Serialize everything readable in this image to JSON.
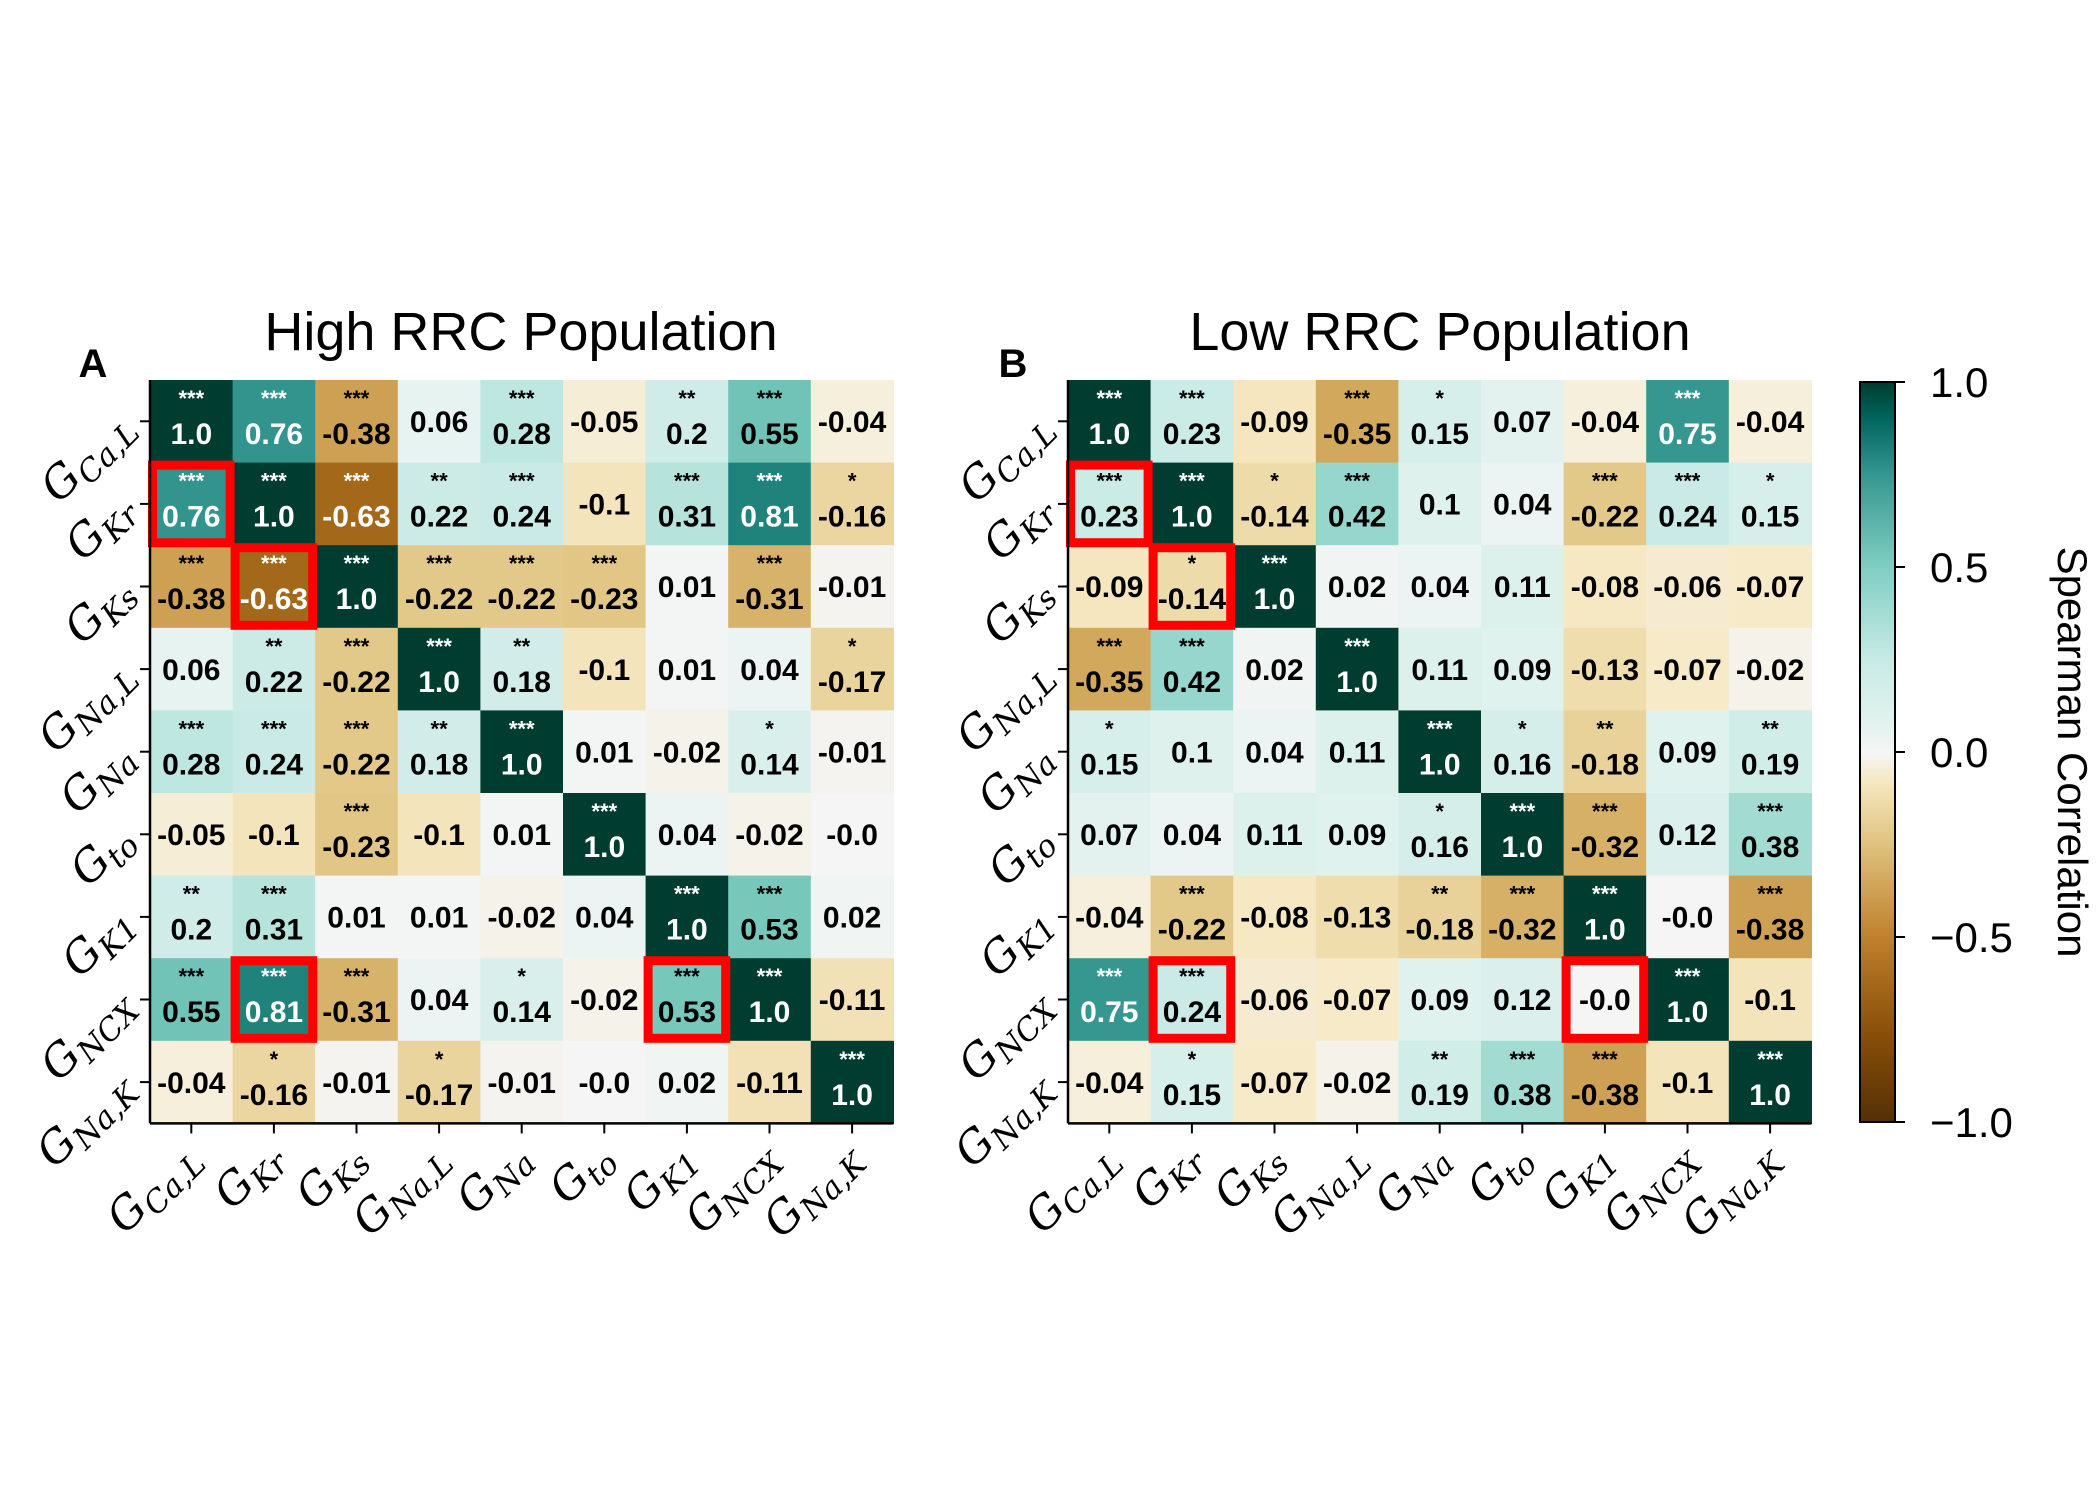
{
  "chart_data": [
    {
      "type": "heatmap",
      "panel_letter": "A",
      "title": "High RRC Population",
      "labels": [
        {
          "main": "G",
          "sub": "Ca,L"
        },
        {
          "main": "G",
          "sub": "Kr"
        },
        {
          "main": "G",
          "sub": "Ks"
        },
        {
          "main": "G",
          "sub": "Na,L"
        },
        {
          "main": "G",
          "sub": "Na"
        },
        {
          "main": "G",
          "sub": "to"
        },
        {
          "main": "G",
          "sub": "K1"
        },
        {
          "main": "G",
          "sub": "NCX"
        },
        {
          "main": "G",
          "sub": "Na,K"
        }
      ],
      "values": [
        [
          "1.0",
          "0.76",
          "-0.38",
          "0.06",
          "0.28",
          "-0.05",
          "0.2",
          "0.55",
          "-0.04"
        ],
        [
          "0.76",
          "1.0",
          "-0.63",
          "0.22",
          "0.24",
          "-0.1",
          "0.31",
          "0.81",
          "-0.16"
        ],
        [
          "-0.38",
          "-0.63",
          "1.0",
          "-0.22",
          "-0.22",
          "-0.23",
          "0.01",
          "-0.31",
          "-0.01"
        ],
        [
          "0.06",
          "0.22",
          "-0.22",
          "1.0",
          "0.18",
          "-0.1",
          "0.01",
          "0.04",
          "-0.17"
        ],
        [
          "0.28",
          "0.24",
          "-0.22",
          "0.18",
          "1.0",
          "0.01",
          "-0.02",
          "0.14",
          "-0.01"
        ],
        [
          "-0.05",
          "-0.1",
          "-0.23",
          "-0.1",
          "0.01",
          "1.0",
          "0.04",
          "-0.02",
          "-0.0"
        ],
        [
          "0.2",
          "0.31",
          "0.01",
          "0.01",
          "-0.02",
          "0.04",
          "1.0",
          "0.53",
          "0.02"
        ],
        [
          "0.55",
          "0.81",
          "-0.31",
          "0.04",
          "0.14",
          "-0.02",
          "0.53",
          "1.0",
          "-0.11"
        ],
        [
          "-0.04",
          "-0.16",
          "-0.01",
          "-0.17",
          "-0.01",
          "-0.0",
          "0.02",
          "-0.11",
          "1.0"
        ]
      ],
      "significance": [
        [
          "***",
          "***",
          "***",
          "",
          "***",
          "",
          "**",
          "***",
          ""
        ],
        [
          "***",
          "***",
          "***",
          "**",
          "***",
          "",
          "***",
          "***",
          "*"
        ],
        [
          "***",
          "***",
          "***",
          "***",
          "***",
          "***",
          "",
          "***",
          ""
        ],
        [
          "",
          "**",
          "***",
          "***",
          "**",
          "",
          "",
          "",
          "*"
        ],
        [
          "***",
          "***",
          "***",
          "**",
          "***",
          "",
          "",
          "*",
          ""
        ],
        [
          "",
          "",
          "***",
          "",
          "",
          "***",
          "",
          "",
          ""
        ],
        [
          "**",
          "***",
          "",
          "",
          "",
          "",
          "***",
          "***",
          ""
        ],
        [
          "***",
          "***",
          "***",
          "",
          "*",
          "",
          "***",
          "***",
          ""
        ],
        [
          "",
          "*",
          "",
          "*",
          "",
          "",
          "",
          "",
          "***"
        ]
      ],
      "highlighted_cells": [
        [
          1,
          0
        ],
        [
          2,
          1
        ],
        [
          7,
          1
        ],
        [
          7,
          6
        ]
      ]
    },
    {
      "type": "heatmap",
      "panel_letter": "B",
      "title": "Low RRC Population",
      "labels": [
        {
          "main": "G",
          "sub": "Ca,L"
        },
        {
          "main": "G",
          "sub": "Kr"
        },
        {
          "main": "G",
          "sub": "Ks"
        },
        {
          "main": "G",
          "sub": "Na,L"
        },
        {
          "main": "G",
          "sub": "Na"
        },
        {
          "main": "G",
          "sub": "to"
        },
        {
          "main": "G",
          "sub": "K1"
        },
        {
          "main": "G",
          "sub": "NCX"
        },
        {
          "main": "G",
          "sub": "Na,K"
        }
      ],
      "values": [
        [
          "1.0",
          "0.23",
          "-0.09",
          "-0.35",
          "0.15",
          "0.07",
          "-0.04",
          "0.75",
          "-0.04"
        ],
        [
          "0.23",
          "1.0",
          "-0.14",
          "0.42",
          "0.1",
          "0.04",
          "-0.22",
          "0.24",
          "0.15"
        ],
        [
          "-0.09",
          "-0.14",
          "1.0",
          "0.02",
          "0.04",
          "0.11",
          "-0.08",
          "-0.06",
          "-0.07"
        ],
        [
          "-0.35",
          "0.42",
          "0.02",
          "1.0",
          "0.11",
          "0.09",
          "-0.13",
          "-0.07",
          "-0.02"
        ],
        [
          "0.15",
          "0.1",
          "0.04",
          "0.11",
          "1.0",
          "0.16",
          "-0.18",
          "0.09",
          "0.19"
        ],
        [
          "0.07",
          "0.04",
          "0.11",
          "0.09",
          "0.16",
          "1.0",
          "-0.32",
          "0.12",
          "0.38"
        ],
        [
          "-0.04",
          "-0.22",
          "-0.08",
          "-0.13",
          "-0.18",
          "-0.32",
          "1.0",
          "-0.0",
          "-0.38"
        ],
        [
          "0.75",
          "0.24",
          "-0.06",
          "-0.07",
          "0.09",
          "0.12",
          "-0.0",
          "1.0",
          "-0.1"
        ],
        [
          "-0.04",
          "0.15",
          "-0.07",
          "-0.02",
          "0.19",
          "0.38",
          "-0.38",
          "-0.1",
          "1.0"
        ]
      ],
      "significance": [
        [
          "***",
          "***",
          "",
          "***",
          "*",
          "",
          "",
          "***",
          ""
        ],
        [
          "***",
          "***",
          "*",
          "***",
          "",
          "",
          "***",
          "***",
          "*"
        ],
        [
          "",
          "*",
          "***",
          "",
          "",
          "",
          "",
          "",
          ""
        ],
        [
          "***",
          "***",
          "",
          "***",
          "",
          "",
          "",
          "",
          ""
        ],
        [
          "*",
          "",
          "",
          "",
          "***",
          "*",
          "**",
          "",
          "**"
        ],
        [
          "",
          "",
          "",
          "",
          "*",
          "***",
          "***",
          "",
          "***"
        ],
        [
          "",
          "***",
          "",
          "",
          "**",
          "***",
          "***",
          "",
          "***"
        ],
        [
          "***",
          "***",
          "",
          "",
          "",
          "",
          "",
          "***",
          ""
        ],
        [
          "",
          "*",
          "",
          "",
          "**",
          "***",
          "***",
          "",
          "***"
        ]
      ],
      "highlighted_cells": [
        [
          1,
          0
        ],
        [
          2,
          1
        ],
        [
          7,
          1
        ],
        [
          7,
          6
        ]
      ]
    }
  ],
  "colorbar": {
    "label": "Spearman Correlation",
    "range": [
      -1.0,
      1.0
    ],
    "ticks": [
      "1.0",
      "0.5",
      "0.0",
      "−0.5",
      "−1.0"
    ],
    "tick_values": [
      1.0,
      0.5,
      0.0,
      -0.5,
      -1.0
    ],
    "colormap": "BrBG",
    "colors": {
      "negative_end": "#543005",
      "neutral": "#f5f5f5",
      "positive_end": "#003c30",
      "highlight": "#ff0000"
    }
  }
}
